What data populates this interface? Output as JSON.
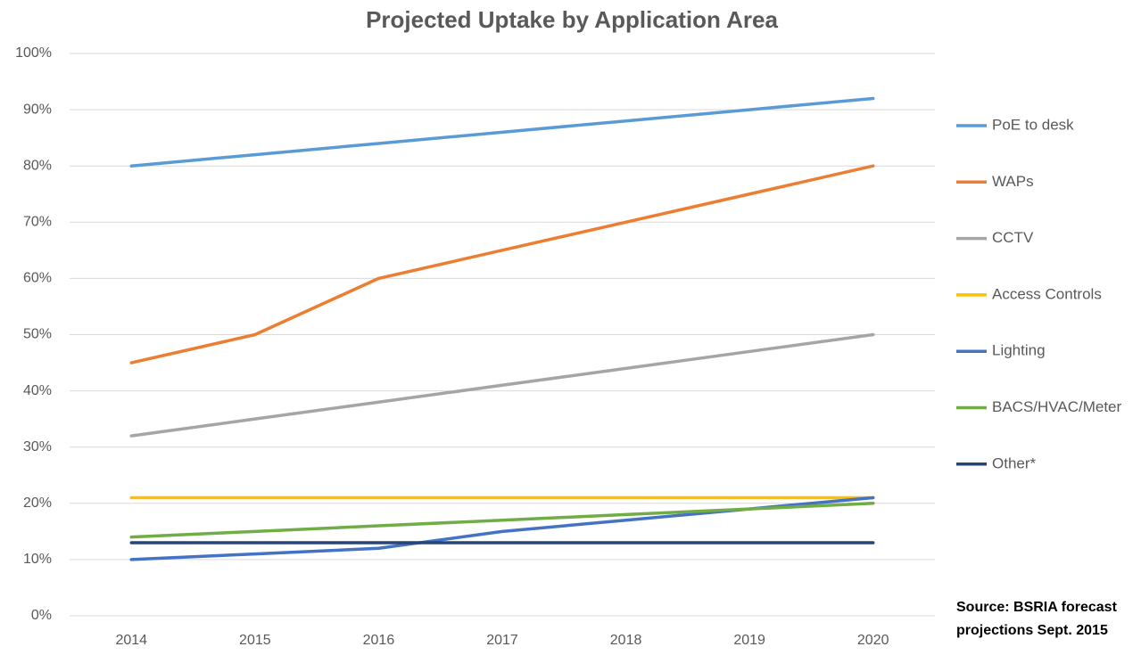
{
  "chart_data": {
    "type": "line",
    "title": "Projected Uptake by Application Area",
    "categories": [
      "2014",
      "2015",
      "2016",
      "2017",
      "2018",
      "2019",
      "2020"
    ],
    "series": [
      {
        "name": "PoE to desk",
        "color": "#5b9bd5",
        "values": [
          80,
          82,
          84,
          86,
          88,
          90,
          92
        ]
      },
      {
        "name": "WAPs",
        "color": "#ed7d31",
        "values": [
          45,
          50,
          60,
          65,
          70,
          75,
          80
        ]
      },
      {
        "name": "CCTV",
        "color": "#a5a5a5",
        "values": [
          32,
          35,
          38,
          41,
          44,
          47,
          50
        ]
      },
      {
        "name": "Access Controls",
        "color": "#ffc000",
        "values": [
          21,
          21,
          21,
          21,
          21,
          21,
          21
        ]
      },
      {
        "name": "Lighting",
        "color": "#4472c4",
        "values": [
          10,
          11,
          12,
          15,
          17,
          19,
          21
        ]
      },
      {
        "name": "BACS/HVAC/Meter",
        "color": "#70ad47",
        "values": [
          14,
          15,
          16,
          17,
          18,
          19,
          20
        ]
      },
      {
        "name": "Other*",
        "color": "#264478",
        "values": [
          13,
          13,
          13,
          13,
          13,
          13,
          13
        ]
      }
    ],
    "ylim": [
      0,
      100
    ],
    "yticks": [
      {
        "value": 0,
        "label": "0%"
      },
      {
        "value": 10,
        "label": "10%"
      },
      {
        "value": 20,
        "label": "20%"
      },
      {
        "value": 30,
        "label": "30%"
      },
      {
        "value": 40,
        "label": "40%"
      },
      {
        "value": 50,
        "label": "50%"
      },
      {
        "value": 60,
        "label": "60%"
      },
      {
        "value": 70,
        "label": "70%"
      },
      {
        "value": 80,
        "label": "80%"
      },
      {
        "value": 90,
        "label": "90%"
      },
      {
        "value": 100,
        "label": "100%"
      }
    ],
    "grid": true,
    "legend": "right",
    "annotation": [
      "Source: BSRIA forecast",
      "projections Sept. 2015"
    ]
  }
}
